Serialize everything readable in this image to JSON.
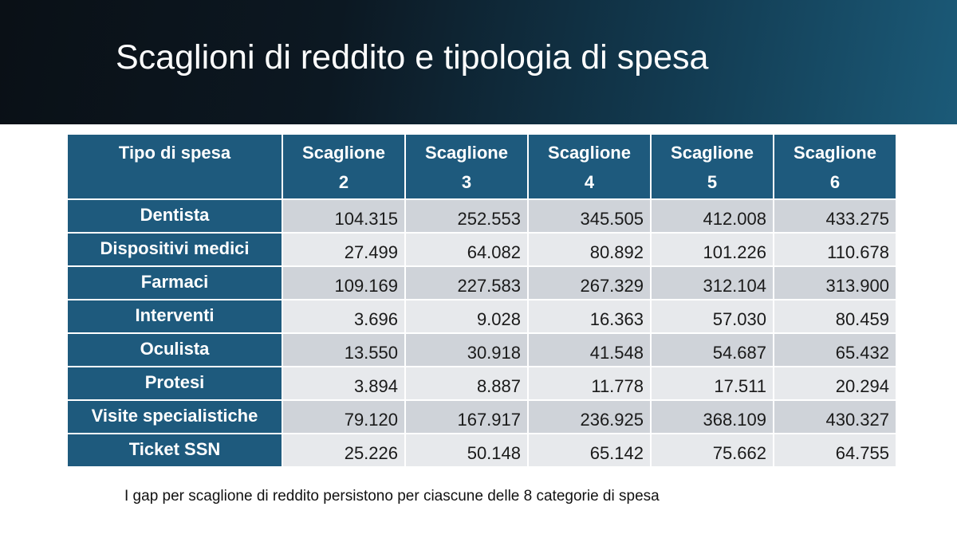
{
  "slide": {
    "title": "Scaglioni di reddito e tipologia di spesa",
    "footnote": "I gap per scaglione di reddito persistono per ciascune delle 8 categorie di spesa"
  },
  "table": {
    "header": {
      "type": "Tipo di spesa",
      "cols": [
        {
          "l1": "Scaglione",
          "l2": "2"
        },
        {
          "l1": "Scaglione",
          "l2": "3"
        },
        {
          "l1": "Scaglione",
          "l2": "4"
        },
        {
          "l1": "Scaglione",
          "l2": "5"
        },
        {
          "l1": "Scaglione",
          "l2": "6"
        }
      ]
    },
    "rows": [
      {
        "label": "Dentista",
        "values": [
          "104.315",
          "252.553",
          "345.505",
          "412.008",
          "433.275"
        ]
      },
      {
        "label": "Dispositivi medici",
        "values": [
          "27.499",
          "64.082",
          "80.892",
          "101.226",
          "110.678"
        ]
      },
      {
        "label": "Farmaci",
        "values": [
          "109.169",
          "227.583",
          "267.329",
          "312.104",
          "313.900"
        ]
      },
      {
        "label": "Interventi",
        "values": [
          "3.696",
          "9.028",
          "16.363",
          "57.030",
          "80.459"
        ]
      },
      {
        "label": "Oculista",
        "values": [
          "13.550",
          "30.918",
          "41.548",
          "54.687",
          "65.432"
        ]
      },
      {
        "label": "Protesi",
        "values": [
          "3.894",
          "8.887",
          "11.778",
          "17.511",
          "20.294"
        ]
      },
      {
        "label": "Visite specialistiche",
        "values": [
          "79.120",
          "167.917",
          "236.925",
          "368.109",
          "430.327"
        ]
      },
      {
        "label": "Ticket SSN",
        "values": [
          "25.226",
          "50.148",
          "65.142",
          "75.662",
          "64.755"
        ]
      }
    ]
  }
}
